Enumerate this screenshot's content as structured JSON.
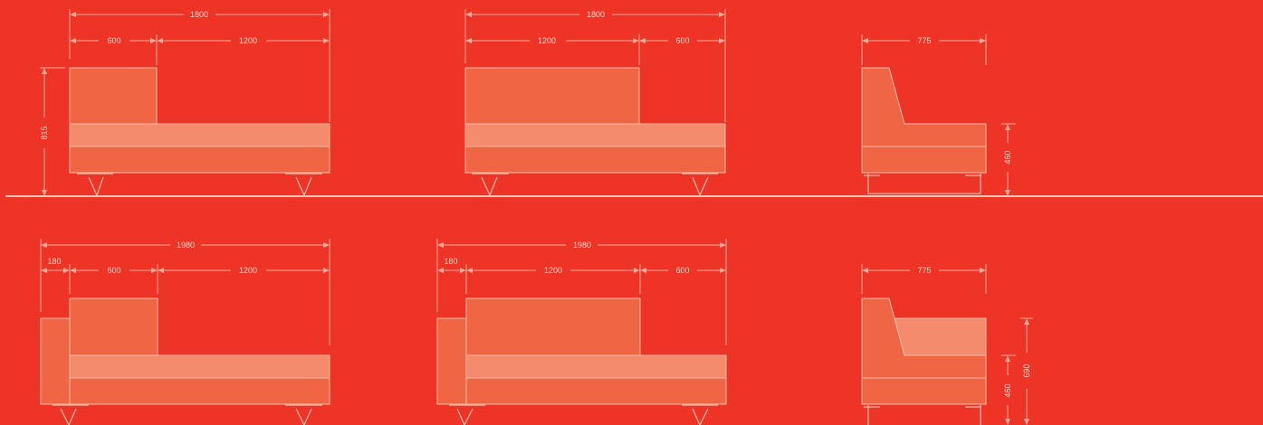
{
  "colors": {
    "background": "#ee3426",
    "upholstery_dark": "#f06645",
    "upholstery_light": "#f48b6c",
    "line": "#f9b9a8"
  },
  "top_row": {
    "sofa_left": {
      "overall_width": "1800",
      "back_width": "600",
      "seat_width": "1200",
      "height": "815"
    },
    "sofa_right": {
      "overall_width": "1800",
      "back_width": "600",
      "seat_width": "1200"
    },
    "side_view": {
      "depth": "775",
      "seat_height": "460"
    }
  },
  "bottom_row": {
    "sofa_left": {
      "overall_width": "1980",
      "arm_width": "180",
      "back_width": "600",
      "seat_width": "1200"
    },
    "sofa_right": {
      "overall_width": "1980",
      "arm_width": "180",
      "back_width": "600",
      "seat_width": "1200"
    },
    "side_view": {
      "depth": "775",
      "seat_height": "460",
      "arm_height": "690"
    }
  }
}
